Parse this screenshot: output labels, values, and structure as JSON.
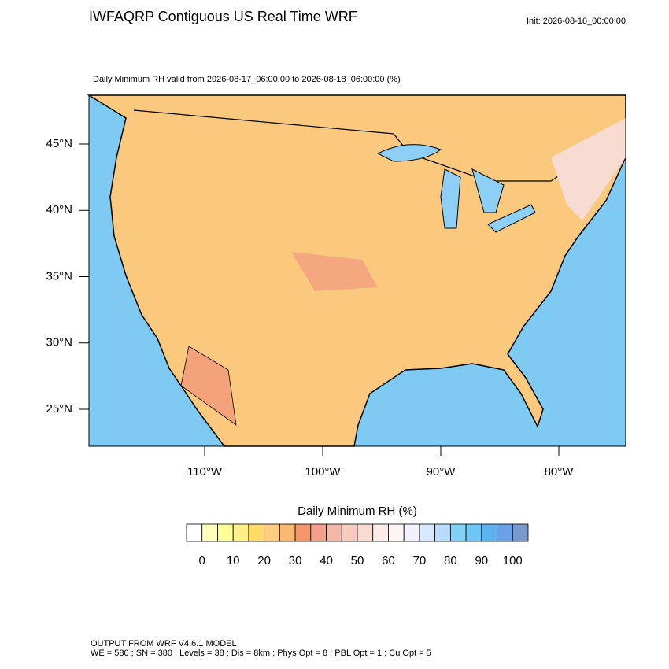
{
  "header": {
    "title": "IWFAQRP Contiguous US Real Time WRF",
    "init": "Init: 2026-08-16_00:00:00"
  },
  "map": {
    "subtitle": "Daily Minimum RH valid from 2026-08-17_06:00:00 to 2026-08-18_06:00:00   (%)",
    "lat_ticks": [
      {
        "value": 45,
        "label": "45°N"
      },
      {
        "value": 40,
        "label": "40°N"
      },
      {
        "value": 35,
        "label": "35°N"
      },
      {
        "value": 30,
        "label": "30°N"
      },
      {
        "value": 25,
        "label": "25°N"
      }
    ],
    "lon_ticks": [
      {
        "value": -110,
        "label": "110°W"
      },
      {
        "value": -100,
        "label": "100°W"
      },
      {
        "value": -90,
        "label": "90°W"
      },
      {
        "value": -80,
        "label": "80°W"
      }
    ]
  },
  "colorbar": {
    "title": "Daily Minimum RH  (%)",
    "colors": [
      "#ffffff",
      "#ffffb8",
      "#ffff99",
      "#fff088",
      "#ffd966",
      "#ffcc80",
      "#f9b870",
      "#f4956a",
      "#f2a08a",
      "#f4b7a7",
      "#f6cbbe",
      "#f8dcd2",
      "#fcecea",
      "#fff4f4",
      "#f0f0ff",
      "#d8e8ff",
      "#b8dcff",
      "#80d0f8",
      "#6ec6f5",
      "#5ab4f0",
      "#6aa0e8",
      "#7799cc"
    ],
    "ticks": [
      0,
      10,
      20,
      30,
      40,
      50,
      60,
      70,
      80,
      90,
      100
    ]
  },
  "footer": {
    "line1": "OUTPUT FROM WRF V4.6.1 MODEL",
    "line2": "WE = 580 ; SN = 380 ; Levels = 38 ; Dis = 8km ; Phys Opt = 8 ; PBL Opt = 1 ; Cu Opt = 5"
  }
}
